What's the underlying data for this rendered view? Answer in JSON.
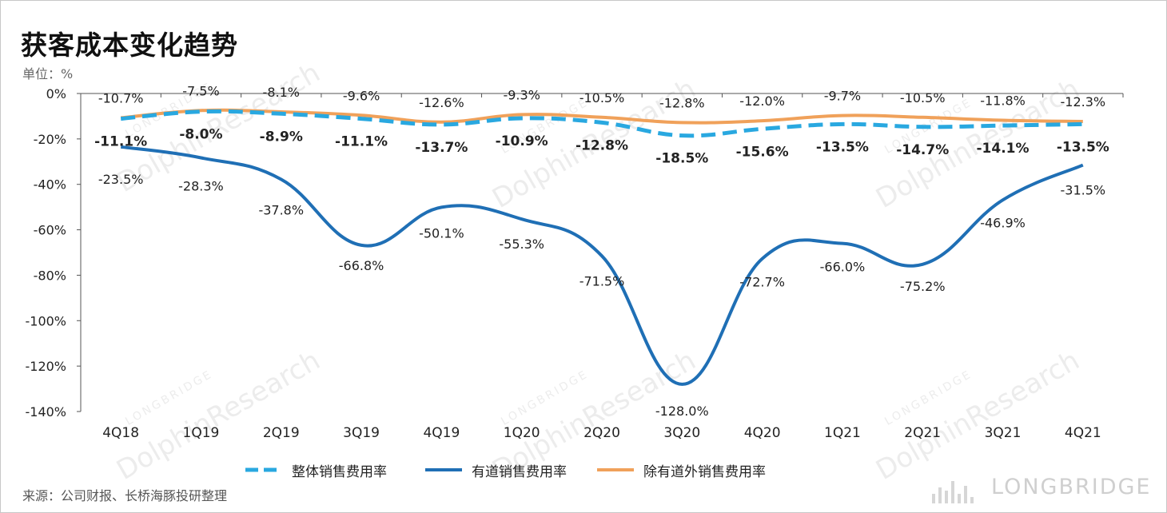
{
  "title": "获客成本变化趋势",
  "unit": "单位：%",
  "source": "来源：公司财报、长桥海豚投研整理",
  "brand": "LONGBRIDGE",
  "watermark": {
    "main": "DolphinResearch",
    "sub": "LONGBRIDGE"
  },
  "colors": {
    "overall": "#29A8E0",
    "youdao": "#1F6FB5",
    "excl": "#F0A15A",
    "axis": "#555555"
  },
  "chart_data": {
    "type": "line",
    "categories": [
      "4Q18",
      "1Q19",
      "2Q19",
      "3Q19",
      "4Q19",
      "1Q20",
      "2Q20",
      "3Q20",
      "4Q20",
      "1Q21",
      "2Q21",
      "3Q21",
      "4Q21"
    ],
    "ylim": [
      -140,
      0
    ],
    "yticks": [
      0,
      -20,
      -40,
      -60,
      -80,
      -100,
      -120,
      -140
    ],
    "ytick_labels": [
      "0%",
      "-20%",
      "-40%",
      "-60%",
      "-80%",
      "-100%",
      "-120%",
      "-140%"
    ],
    "series": [
      {
        "name": "整体销售费用率",
        "style": "dashed",
        "key": "overall",
        "values": [
          -11.1,
          -8.0,
          -8.9,
          -11.1,
          -13.7,
          -10.9,
          -12.8,
          -18.5,
          -15.6,
          -13.5,
          -14.7,
          -14.1,
          -13.5
        ],
        "labels": [
          "-11.1%",
          "-8.0%",
          "-8.9%",
          "-11.1%",
          "-13.7%",
          "-10.9%",
          "-12.8%",
          "-18.5%",
          "-15.6%",
          "-13.5%",
          "-14.7%",
          "-14.1%",
          "-13.5%"
        ]
      },
      {
        "name": "有道销售费用率",
        "style": "solid",
        "key": "youdao",
        "values": [
          -23.5,
          -28.3,
          -37.8,
          -66.8,
          -50.1,
          -55.3,
          -71.5,
          -128.0,
          -72.7,
          -66.0,
          -75.2,
          -46.9,
          -31.5
        ],
        "labels": [
          "-23.5%",
          "-28.3%",
          "-37.8%",
          "-66.8%",
          "-50.1%",
          "-55.3%",
          "-71.5%",
          "-128.0%",
          "-72.7%",
          "-66.0%",
          "-75.2%",
          "-46.9%",
          "-31.5%"
        ]
      },
      {
        "name": "除有道外销售费用率",
        "style": "solid",
        "key": "excl",
        "values": [
          -10.7,
          -7.5,
          -8.1,
          -9.6,
          -12.6,
          -9.3,
          -10.5,
          -12.8,
          -12.0,
          -9.7,
          -10.5,
          -11.8,
          -12.3
        ],
        "labels": [
          "-10.7%",
          "-7.5%",
          "-8.1%",
          "-9.6%",
          "-12.6%",
          "-9.3%",
          "-10.5%",
          "-12.8%",
          "-12.0%",
          "-9.7%",
          "-10.5%",
          "-11.8%",
          "-12.3%"
        ]
      }
    ]
  }
}
